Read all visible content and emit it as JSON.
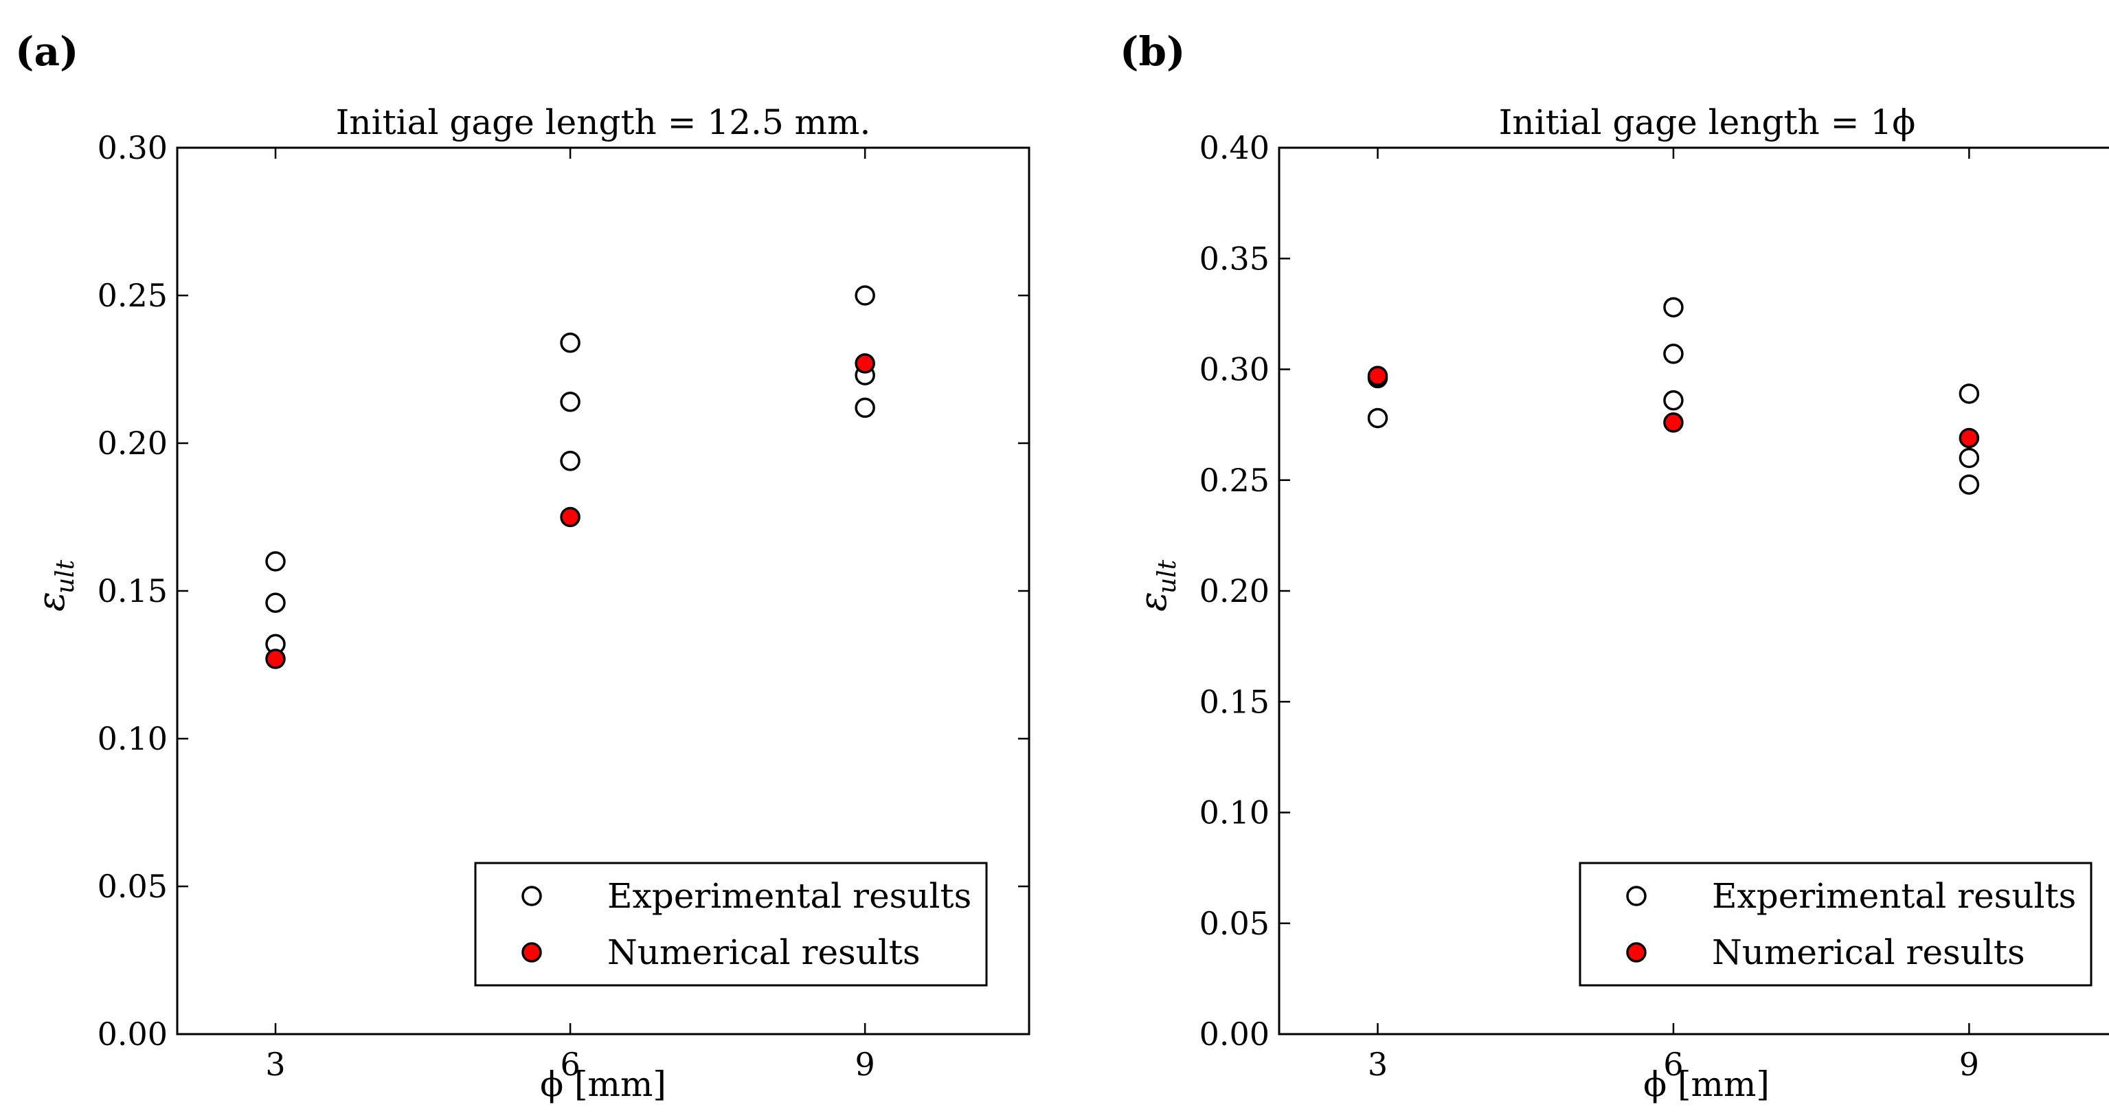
{
  "figure": {
    "panels": [
      "(a)",
      "(b)"
    ]
  },
  "chart_data": [
    {
      "type": "scatter",
      "panel_label": "(a)",
      "title": "Initial gage length = 12.5 mm.",
      "xlabel": "ϕ [mm]",
      "ylabel": "ε",
      "ylabel_sub": "ult",
      "xlim": [
        2,
        10.67
      ],
      "ylim": [
        0.0,
        0.3
      ],
      "xticks": [
        3,
        6,
        9
      ],
      "xtick_labels": [
        "3",
        "6",
        "9"
      ],
      "yticks": [
        0.0,
        0.05,
        0.1,
        0.15,
        0.2,
        0.25,
        0.3
      ],
      "ytick_labels": [
        "0.00",
        "0.05",
        "0.10",
        "0.15",
        "0.20",
        "0.25",
        "0.30"
      ],
      "legend_position": "lower-right",
      "series": [
        {
          "name": "Experimental results",
          "marker": "hollow-circle",
          "color": "#ffffff",
          "points": [
            [
              3,
              0.16
            ],
            [
              3,
              0.146
            ],
            [
              3,
              0.132
            ],
            [
              6,
              0.234
            ],
            [
              6,
              0.214
            ],
            [
              6,
              0.194
            ],
            [
              9,
              0.25
            ],
            [
              9,
              0.223
            ],
            [
              9,
              0.212
            ]
          ]
        },
        {
          "name": "Numerical results",
          "marker": "filled-circle",
          "color": "#ff0000",
          "points": [
            [
              3,
              0.127
            ],
            [
              6,
              0.175
            ],
            [
              9,
              0.227
            ]
          ]
        }
      ]
    },
    {
      "type": "scatter",
      "panel_label": "(b)",
      "title": "Initial gage length = 1ϕ",
      "xlabel": "ϕ [mm]",
      "ylabel": "ε",
      "ylabel_sub": "ult",
      "xlim": [
        2,
        10.67
      ],
      "ylim": [
        0.0,
        0.4
      ],
      "xticks": [
        3,
        6,
        9
      ],
      "xtick_labels": [
        "3",
        "6",
        "9"
      ],
      "yticks": [
        0.0,
        0.05,
        0.1,
        0.15,
        0.2,
        0.25,
        0.3,
        0.35,
        0.4
      ],
      "ytick_labels": [
        "0.00",
        "0.05",
        "0.10",
        "0.15",
        "0.20",
        "0.25",
        "0.30",
        "0.35",
        "0.40"
      ],
      "legend_position": "lower-right",
      "series": [
        {
          "name": "Experimental results",
          "marker": "hollow-circle",
          "color": "#ffffff",
          "points": [
            [
              3,
              0.296
            ],
            [
              3,
              0.278
            ],
            [
              6,
              0.328
            ],
            [
              6,
              0.307
            ],
            [
              6,
              0.286
            ],
            [
              9,
              0.289
            ],
            [
              9,
              0.26
            ],
            [
              9,
              0.248
            ]
          ]
        },
        {
          "name": "Numerical results",
          "marker": "filled-circle",
          "color": "#ff0000",
          "points": [
            [
              3,
              0.297
            ],
            [
              6,
              0.276
            ],
            [
              9,
              0.269
            ]
          ]
        }
      ]
    }
  ]
}
